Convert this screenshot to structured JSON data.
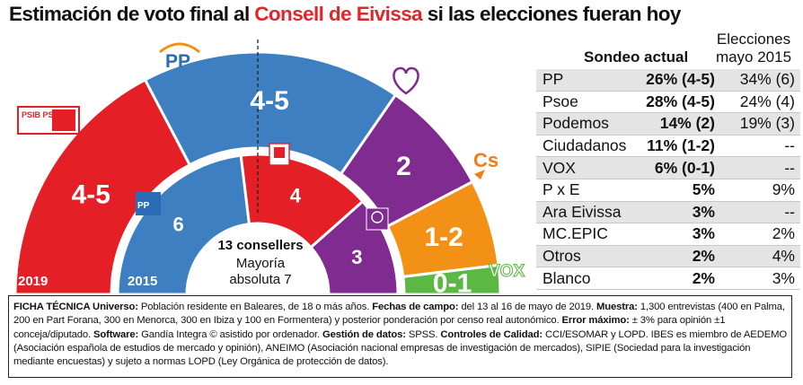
{
  "title": {
    "prefix": "Estimación de voto final al ",
    "highlight": "Consell de Eivissa",
    "suffix": " si las elecciones fueran hoy"
  },
  "colors": {
    "PP": "#3e7fc1",
    "PSOE": "#e41f26",
    "Podemos": "#7f2b8f",
    "Ciudadanos": "#f39117",
    "VOX": "#5ab843",
    "accent": "#e0262c"
  },
  "chart_data": [
    {
      "type": "pie",
      "shape": "half-donut",
      "ring_label": "2019",
      "categories": [
        "PSOE",
        "PP",
        "Podemos",
        "Ciudadanos",
        "VOX"
      ],
      "labels": [
        "4-5",
        "4-5",
        "2",
        "1-2",
        "0-1"
      ],
      "values": [
        4.5,
        4.5,
        2,
        1.5,
        0.5
      ],
      "colors": [
        "#e41f26",
        "#3e7fc1",
        "#7f2b8f",
        "#f39117",
        "#5ab843"
      ],
      "annotations": [
        "13 consellers",
        "Mayoría",
        "absoluta 7"
      ],
      "logos": [
        "PSIB PSOE",
        "PP",
        "Podemos",
        "Cs",
        "VOX"
      ]
    },
    {
      "type": "pie",
      "shape": "half-donut",
      "ring_label": "2015",
      "categories": [
        "PP",
        "PSOE",
        "Podemos"
      ],
      "labels": [
        "6",
        "4",
        "3"
      ],
      "values": [
        6,
        4,
        3
      ],
      "colors": [
        "#3e7fc1",
        "#e41f26",
        "#7f2b8f"
      ],
      "logos": [
        "PP",
        "PSOE",
        "Podemos"
      ]
    },
    {
      "type": "table",
      "columns": [
        "",
        "Sondeo actual",
        "Elecciones mayo 2015"
      ],
      "column_headers": {
        "current": "Sondeo actual",
        "prev_line1": "Elecciones",
        "prev_line2": "mayo 2015"
      },
      "rows": [
        [
          "PP",
          "26% (4-5)",
          "34% (6)"
        ],
        [
          "Psoe",
          "28% (4-5)",
          "24% (4)"
        ],
        [
          "Podemos",
          "14% (2)",
          "19% (3)"
        ],
        [
          "Ciudadanos",
          "11% (1-2)",
          "--"
        ],
        [
          "VOX",
          "6% (0-1)",
          "--"
        ],
        [
          "P x E",
          "5%",
          "9%"
        ],
        [
          "Ara Eivissa",
          "3%",
          "--"
        ],
        [
          "MC.EPIC",
          "3%",
          "2%"
        ],
        [
          "Otros",
          "2%",
          "4%"
        ],
        [
          "Blanco",
          "2%",
          "3%"
        ]
      ]
    }
  ],
  "ficha": {
    "h1": "FICHA TÉCNICA Universo:",
    "t1": " Población residente en Baleares, de 18 o más años. ",
    "h2": "Fechas de campo:",
    "t2": " del 13 al 16 de mayo de 2019. ",
    "h3": "Muestra:",
    "t3": " 1,300 entrevistas (400 en Palma, 200 en Part Forana, 300 en Menorca, 300 en Ibiza y 100 en Formentera) y posterior ponderación por censo real autonómico. ",
    "h4": "Error máximo:",
    "t4": " ± 3% para opinión ±1 conceja/diputado.",
    "h5": "Software:",
    "t5": " Gandía Integra © asistido por ordenador. ",
    "h6": "Gestión de datos:",
    "t6": " SPSS. ",
    "h7": "Controles de Calidad:",
    "t7": " CCI/ESOMAR y LOPD. IBES es miembro de AEDEMO (Asociación española de estudios de mercado y opinión), ANEIMO (Asociación nacional empresas de investigación de mercados), SIPIE (Sociedad para la investigación mediante encuestas) y sujeto a normas LOPD (Ley Orgánica de protección de datos)."
  }
}
